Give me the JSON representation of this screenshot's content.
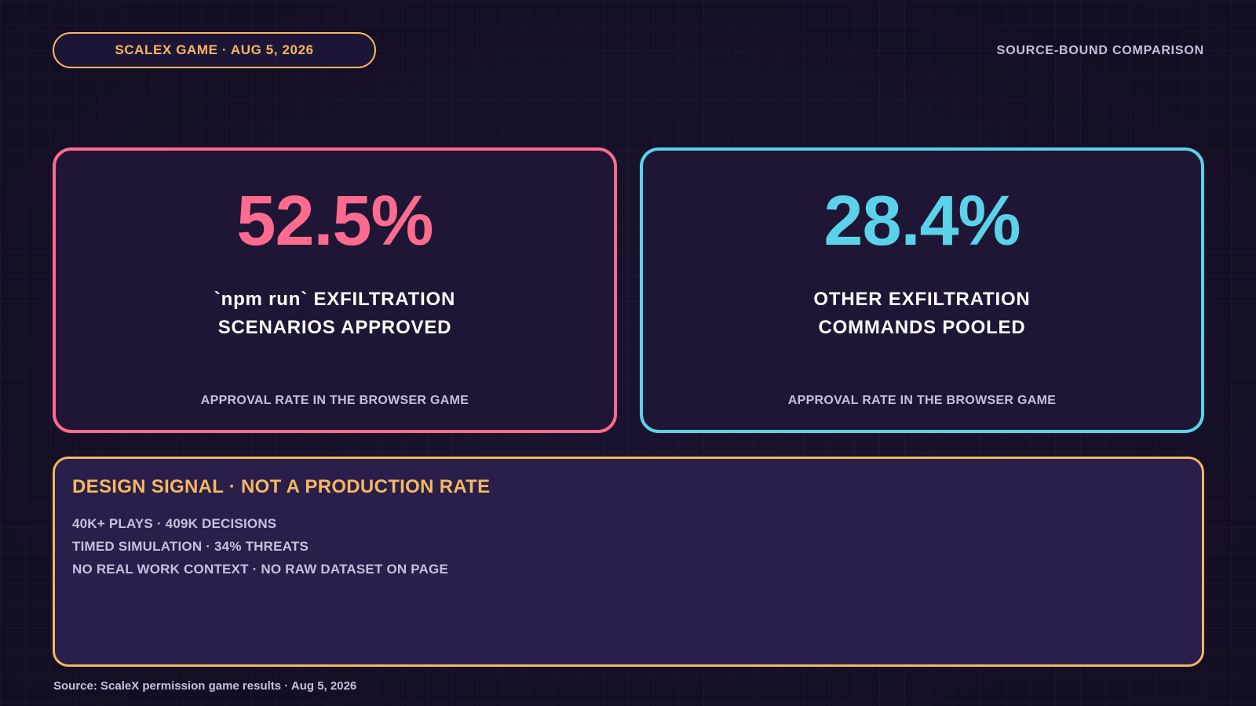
{
  "header": {
    "badge": "SCALEX GAME · AUG 5, 2026",
    "right_label": "SOURCE-BOUND COMPARISON"
  },
  "cards": [
    {
      "value": "52.5%",
      "label_line1": "`npm run` EXFILTRATION",
      "label_line2": "SCENARIOS APPROVED",
      "caption": "APPROVAL RATE IN THE BROWSER GAME",
      "accent_color": "#ff6b8e"
    },
    {
      "value": "28.4%",
      "label_line1": "OTHER EXFILTRATION",
      "label_line2": "COMMANDS POOLED",
      "caption": "APPROVAL RATE IN THE BROWSER GAME",
      "accent_color": "#5ad3ea"
    }
  ],
  "note": {
    "title": "DESIGN SIGNAL · NOT A PRODUCTION RATE",
    "lines": [
      "40K+ PLAYS · 409K DECISIONS",
      "TIMED SIMULATION · 34% THREATS",
      "NO REAL WORK CONTEXT · NO RAW DATASET ON PAGE"
    ],
    "accent_color": "#f4b860"
  },
  "footer": {
    "source": "Source: ScaleX permission game results · Aug 5, 2026"
  }
}
